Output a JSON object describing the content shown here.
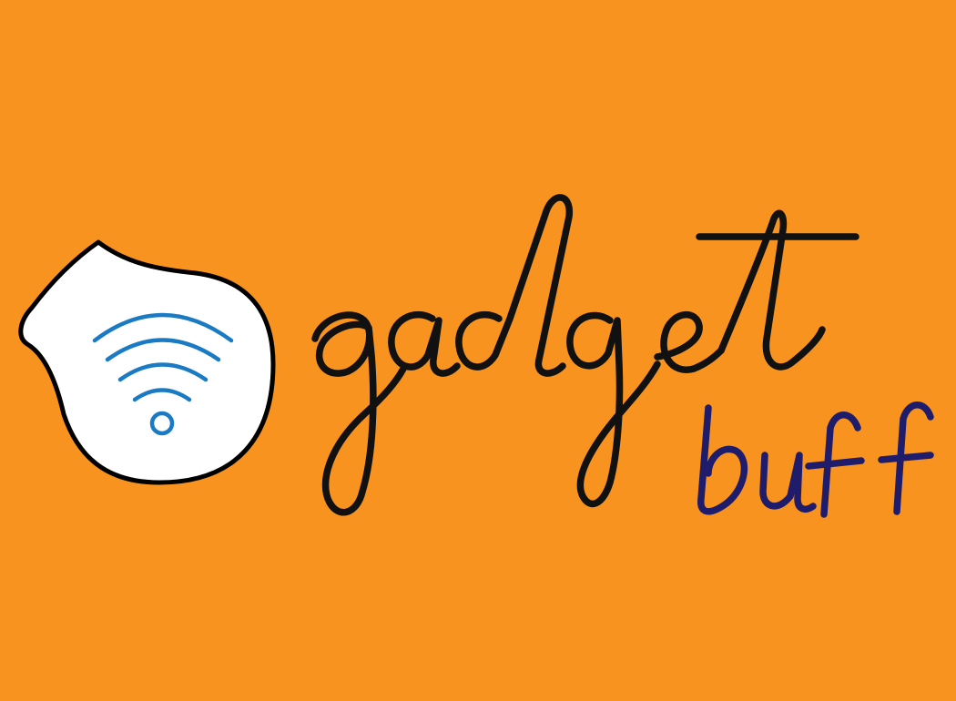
{
  "background_color": "#F7931E",
  "logo": {
    "word_main": "gadget",
    "word_sub": "buff",
    "word_main_color": "#111111",
    "word_sub_color": "#1F1C6B",
    "badge_fill": "#FFFFFF",
    "badge_outline": "#000000",
    "wifi_color": "#1A7BC4",
    "icon": "wifi-signal-icon"
  }
}
